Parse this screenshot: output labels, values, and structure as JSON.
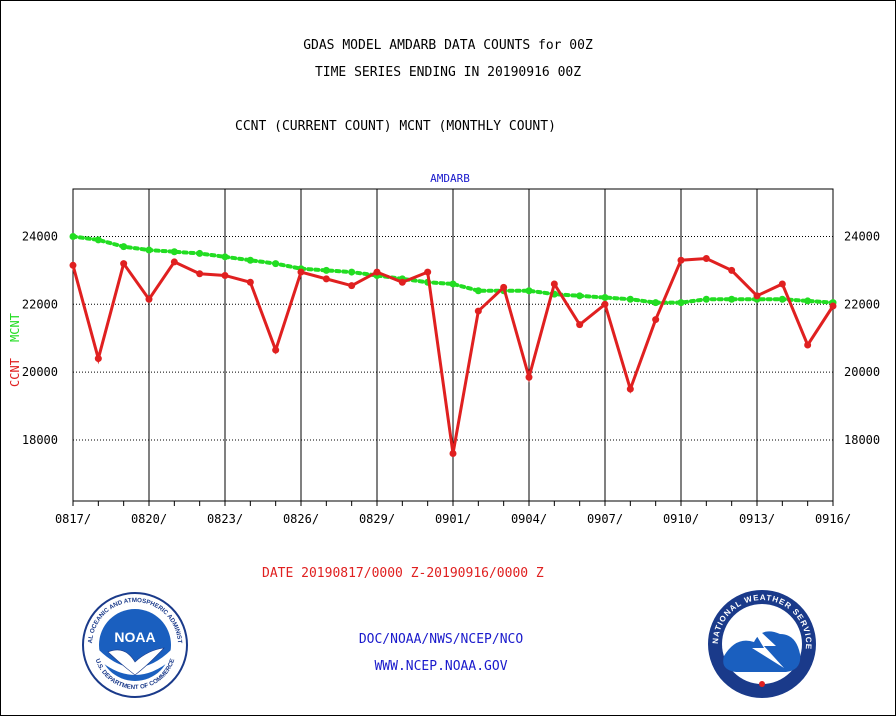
{
  "header": {
    "title_line1": "GDAS MODEL AMDARB DATA COUNTS for 00Z",
    "title_line2": "TIME SERIES ENDING IN 20190916 00Z",
    "subtitle": "CCNT (CURRENT COUNT) MCNT (MONTHLY COUNT)"
  },
  "footer": {
    "date_range": "DATE 20190817/0000 Z-20190916/0000 Z",
    "org": "DOC/NOAA/NWS/NCEP/NCO",
    "url": "WWW.NCEP.NOAA.GOV"
  },
  "logos": {
    "noaa_text": "NOAA",
    "noaa_ring": "NATIONAL OCEANIC AND ATMOSPHERIC ADMINISTRATION",
    "noaa_ring_bottom": "U.S. DEPARTMENT OF COMMERCE",
    "nws_ring": "NATIONAL WEATHER SERVICE"
  },
  "colors": {
    "ccnt": "#e02020",
    "mcnt": "#22dd22",
    "text_blue": "#1a1acc",
    "grid": "#000000"
  },
  "chart_data": {
    "type": "line",
    "title": "AMDARB",
    "ylabel_ccnt": "CCNT",
    "ylabel_mcnt": "MCNT",
    "ylim": [
      16200,
      25400
    ],
    "yticks": [
      18000,
      20000,
      22000,
      24000
    ],
    "ytick_labels": [
      "18000",
      "20000",
      "22000",
      "24000"
    ],
    "x_dates": [
      "0817",
      "0818",
      "0819",
      "0820",
      "0821",
      "0822",
      "0823",
      "0824",
      "0825",
      "0826",
      "0827",
      "0828",
      "0829",
      "0830",
      "0831",
      "0901",
      "0902",
      "0903",
      "0904",
      "0905",
      "0906",
      "0907",
      "0908",
      "0909",
      "0910",
      "0911",
      "0912",
      "0913",
      "0914",
      "0915",
      "0916"
    ],
    "xtick_labels": [
      "0817/",
      "0820/",
      "0823/",
      "0826/",
      "0829/",
      "0901/",
      "0904/",
      "0907/",
      "0910/",
      "0913/",
      "0916/"
    ],
    "grid": true,
    "series": [
      {
        "name": "CCNT",
        "color": "#e02020",
        "style": "solid",
        "values": [
          23150,
          20400,
          23200,
          22150,
          23250,
          22900,
          22850,
          22650,
          20650,
          22950,
          22750,
          22550,
          22950,
          22650,
          22950,
          17600,
          21800,
          22500,
          19850,
          22600,
          21400,
          22000,
          19500,
          21550,
          23300,
          23350,
          23000,
          22250,
          22600,
          20800,
          21950
        ]
      },
      {
        "name": "MCNT",
        "color": "#22dd22",
        "style": "dotted",
        "values": [
          24000,
          23900,
          23700,
          23600,
          23550,
          23500,
          23400,
          23300,
          23200,
          23050,
          23000,
          22950,
          22850,
          22750,
          22650,
          22600,
          22400,
          22400,
          22400,
          22300,
          22250,
          22200,
          22150,
          22050,
          22050,
          22150,
          22150,
          22150,
          22150,
          22100,
          22050
        ]
      }
    ]
  }
}
